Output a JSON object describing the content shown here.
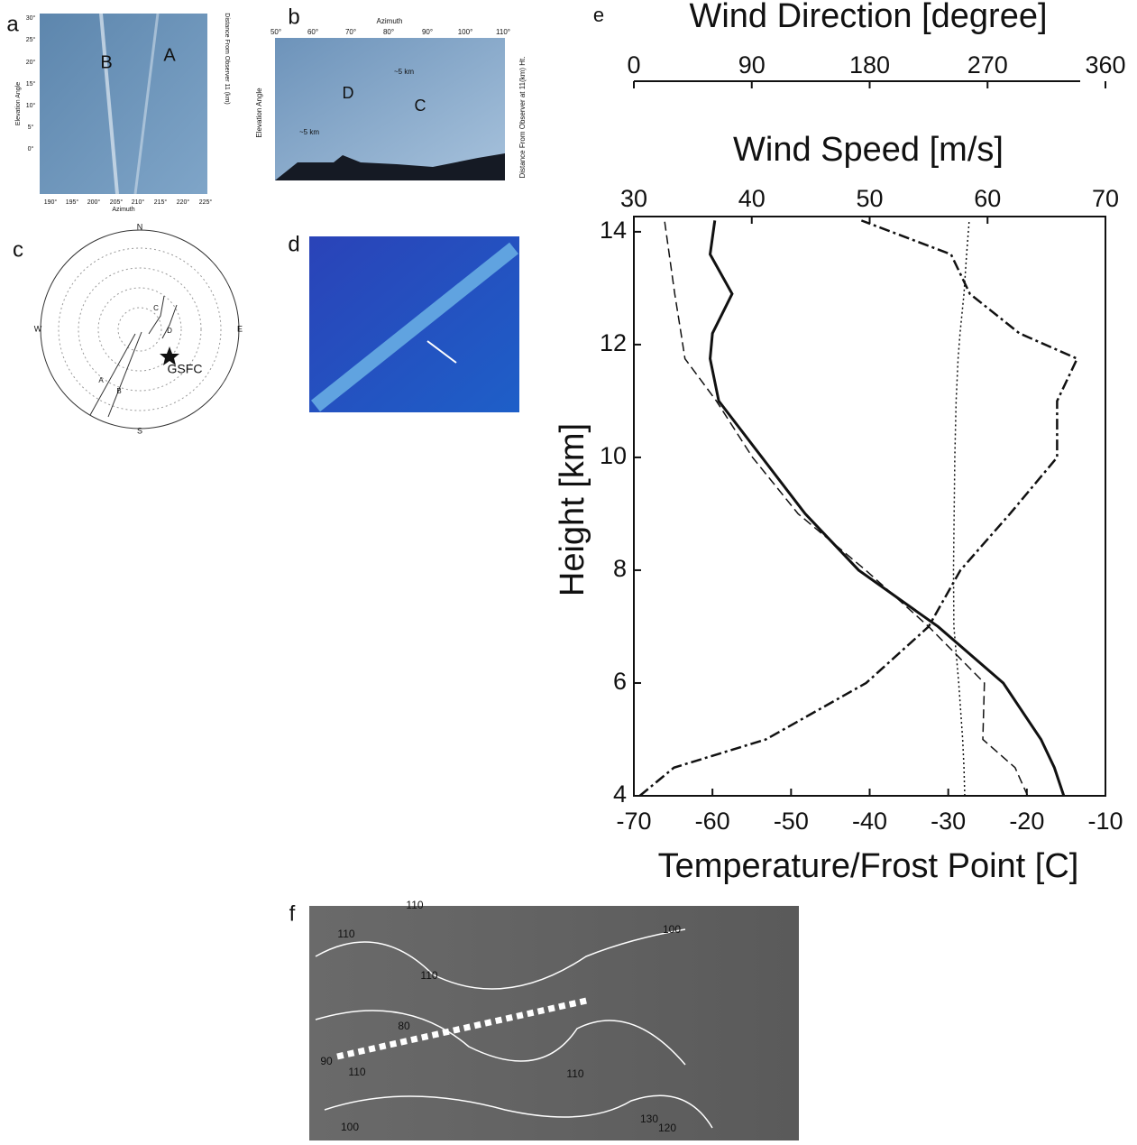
{
  "chart_data": {
    "type": "line",
    "panel_label": "e",
    "x3_label": "Wind Direction [degree]",
    "x2_label": "Wind Speed [m/s]",
    "x_label": "Temperature/Frost Point [C]",
    "y_label": "Height [km]",
    "xlim": [
      -70,
      -10
    ],
    "xticks": [
      -70,
      -60,
      -50,
      -40,
      -30,
      -20,
      -10
    ],
    "x2lim": [
      30,
      70
    ],
    "x2ticks": [
      30,
      40,
      50,
      60,
      70
    ],
    "x3lim": [
      0,
      360
    ],
    "x3ticks": [
      0,
      90,
      180,
      270,
      360
    ],
    "ylim": [
      4,
      14.27
    ],
    "yticks": [
      4,
      6,
      8,
      10,
      12,
      14
    ],
    "y": [
      4,
      4.5,
      5,
      6,
      7,
      8,
      9,
      10,
      11,
      11.75,
      12.2,
      12.9,
      13.6,
      14.2
    ],
    "series": [
      {
        "axis": "x",
        "color": "#111111",
        "style": "solid",
        "width": 3,
        "values": [
          -15.3,
          -16.5,
          -18.2,
          -23,
          -31.3,
          -41.4,
          -48.2,
          -53.7,
          -59.2,
          -60.3,
          -60,
          -57.5,
          -60.3,
          -59.7
        ]
      },
      {
        "axis": "x",
        "color": "#111111",
        "style": "dashed",
        "width": 1.5,
        "values": [
          -19.9,
          -21.5,
          -25.6,
          -25.4,
          -32.5,
          -40.5,
          -49.1,
          -54.9,
          -59.5,
          -63.5,
          -64,
          -64.8,
          -65.5,
          -66.1
        ]
      },
      {
        "axis": "x2",
        "color": "#111111",
        "style": "dashdot",
        "width": 2.5,
        "values": [
          30.5,
          33.4,
          41.2,
          49.7,
          55,
          57.7,
          61.9,
          65.9,
          65.9,
          67.6,
          62.7,
          58.5,
          56.9,
          49.3
        ]
      },
      {
        "axis": "x3",
        "color": "#111111",
        "style": "dotted",
        "width": 1.5,
        "values": [
          252.6,
          252,
          251,
          248,
          244.3,
          244,
          244.5,
          245,
          246,
          247.5,
          249,
          252,
          254,
          256
        ]
      }
    ]
  },
  "panels": {
    "a": {
      "label": "a",
      "texts": [
        "B",
        "A",
        "Elevation Angle",
        "Azimuth",
        "Distance From Observer 11 (km)",
        "190°",
        "195°",
        "200°",
        "205°",
        "210°",
        "215°",
        "220°",
        "225°",
        "30°",
        "25°",
        "20°",
        "15°",
        "10°",
        "5°",
        "0°"
      ]
    },
    "b": {
      "label": "b",
      "texts": [
        "Azimuth",
        "D",
        "C",
        "~5 km",
        "~5 km",
        "Elevation Angle",
        "Distance From Observer at 11(km) Ht.",
        "50°",
        "60°",
        "70°",
        "80°",
        "90°",
        "100°",
        "110°"
      ]
    },
    "c": {
      "label": "c",
      "texts": [
        "N",
        "S",
        "E",
        "W",
        "GSFC",
        "A",
        "B",
        "C",
        "D"
      ]
    },
    "d": {
      "label": "d"
    },
    "f": {
      "label": "f",
      "texts": [
        "110",
        "110",
        "110",
        "100",
        "80",
        "90",
        "110",
        "110",
        "100",
        "130",
        "120"
      ]
    }
  }
}
